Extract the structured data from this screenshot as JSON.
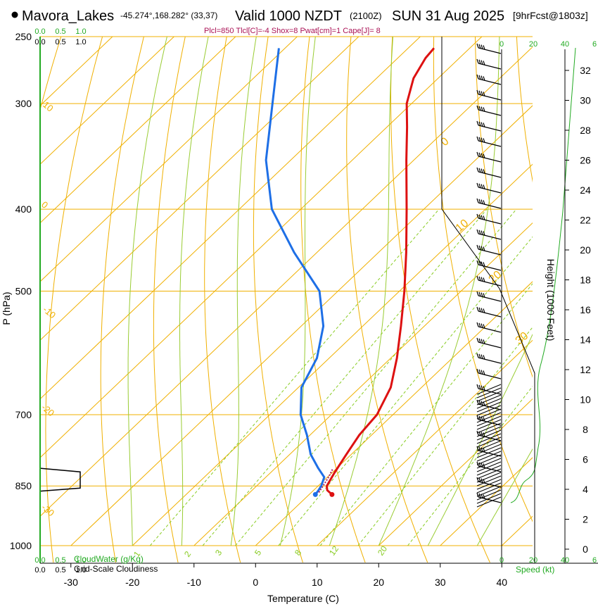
{
  "header": {
    "station": "Mavora_Lakes",
    "coords": "-45.274°,168.282° (33,37)",
    "valid": "Valid 1000 NZDT",
    "utc": "(2100Z)",
    "date": "SUN 31 Aug 2025",
    "forecast": "[9hrFcst@1803z]",
    "indices": "Plcl=850 Tlcl[C]=-4 Shox=8 Pwat[cm]=1 Cape[J]= 8"
  },
  "colors": {
    "temperature": "#dd1111",
    "dewpoint": "#1e6fe6",
    "isotherm": "#f0b000",
    "dry_adiabat": "#f0b000",
    "moist_adiabat": "#99cc33",
    "mixing_ratio": "#88cc22",
    "cloud": "#22aa22",
    "parcel": "#aa2266"
  },
  "chart_data": {
    "type": "skew-t",
    "xlabel": "Temperature (C)",
    "ylabel": "P (hPa)",
    "y2label": "Height (1000 Feet)",
    "xlim": [
      -35,
      45
    ],
    "ylim": [
      1000,
      250
    ],
    "x_ticks": [
      -30,
      -20,
      -10,
      0,
      10,
      20,
      30,
      40
    ],
    "pressure_ticks": [
      250,
      300,
      400,
      500,
      700,
      850,
      1000
    ],
    "height_ticks": [
      0,
      2,
      4,
      6,
      8,
      10,
      12,
      14,
      16,
      18,
      20,
      22,
      24,
      26,
      28,
      30,
      32
    ],
    "skewed_isotherm_labels": [
      "10",
      "0",
      "-10",
      "-20",
      "-30"
    ],
    "dry_adiabat_labels": [
      "0",
      "10",
      "20",
      "30"
    ],
    "mixing_ratio_labels": [
      "1",
      "2",
      "3",
      "5",
      "8",
      "12",
      "20"
    ],
    "cloud_axis_labels": [
      "0.0",
      "0.5",
      "1.0"
    ],
    "cloudwater_label": "CloudWater (g/Kg)",
    "cloudiness_label": "Grid-Scale Cloudiness",
    "speed_ticks": [
      "0",
      "20",
      "40",
      "6"
    ],
    "speed_label": "Speed (kt)",
    "series": [
      {
        "name": "Temperature",
        "points": [
          {
            "p": 870,
            "t": 3.7
          },
          {
            "p": 860,
            "t": 2.2
          },
          {
            "p": 850,
            "t": 1.4
          },
          {
            "p": 820,
            "t": 0.4
          },
          {
            "p": 780,
            "t": -0.8
          },
          {
            "p": 740,
            "t": -2.0
          },
          {
            "p": 700,
            "t": -2.6
          },
          {
            "p": 650,
            "t": -5.0
          },
          {
            "p": 600,
            "t": -9.0
          },
          {
            "p": 550,
            "t": -13.8
          },
          {
            "p": 500,
            "t": -19.2
          },
          {
            "p": 450,
            "t": -25.5
          },
          {
            "p": 400,
            "t": -32.8
          },
          {
            "p": 350,
            "t": -41.2
          },
          {
            "p": 320,
            "t": -46.7
          },
          {
            "p": 300,
            "t": -50.8
          },
          {
            "p": 280,
            "t": -54.0
          },
          {
            "p": 265,
            "t": -55.5
          },
          {
            "p": 258,
            "t": -55.8
          }
        ]
      },
      {
        "name": "Dewpoint",
        "points": [
          {
            "p": 870,
            "t": 1.0
          },
          {
            "p": 860,
            "t": 0.8
          },
          {
            "p": 850,
            "t": 0.5
          },
          {
            "p": 830,
            "t": -0.5
          },
          {
            "p": 810,
            "t": -3.0
          },
          {
            "p": 780,
            "t": -6.6
          },
          {
            "p": 740,
            "t": -10.5
          },
          {
            "p": 700,
            "t": -15.0
          },
          {
            "p": 650,
            "t": -19.5
          },
          {
            "p": 600,
            "t": -22.0
          },
          {
            "p": 550,
            "t": -26.4
          },
          {
            "p": 500,
            "t": -33.0
          },
          {
            "p": 450,
            "t": -43.7
          },
          {
            "p": 400,
            "t": -54.7
          },
          {
            "p": 350,
            "t": -64.0
          },
          {
            "p": 300,
            "t": -72.6
          },
          {
            "p": 258,
            "t": -81.0
          }
        ]
      }
    ],
    "parcel_segment": [
      {
        "p": 865,
        "t": 1.2
      },
      {
        "p": 850,
        "t": 0.8
      },
      {
        "p": 830,
        "t": 0.2
      },
      {
        "p": 810,
        "t": -0.6
      }
    ],
    "cloudiness_profile": [
      {
        "p": 810,
        "fraction": 0.0
      },
      {
        "p": 818,
        "fraction": 0.95
      },
      {
        "p": 855,
        "fraction": 0.95
      },
      {
        "p": 862,
        "fraction": 0.0
      }
    ],
    "cloudiness_axis_range": [
      0.0,
      1.0
    ],
    "height_profile_speed_axis": [
      0,
      60
    ]
  }
}
